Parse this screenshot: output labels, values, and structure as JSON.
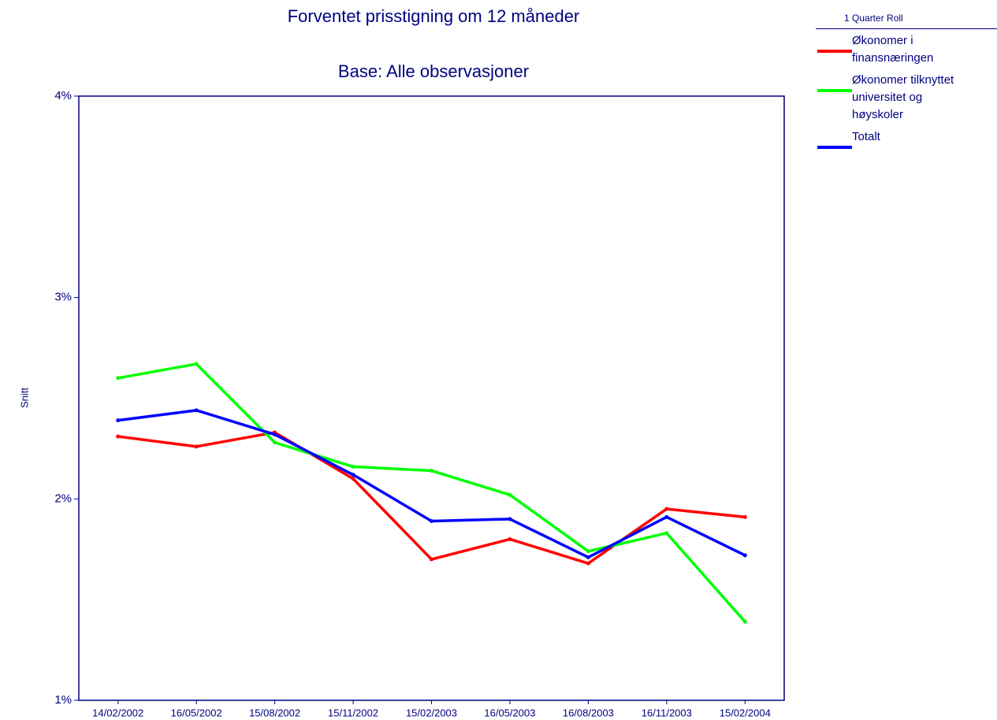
{
  "chart_data": {
    "type": "line",
    "title": "Forventet prisstigning om 12 måneder",
    "subtitle": "Base:  Alle observasjoner",
    "y_label": "Snitt",
    "legend_title": "1 Quarter Roll",
    "categories": [
      "14/02/2002",
      "16/05/2002",
      "15/08/2002",
      "15/11/2002",
      "15/02/2003",
      "16/05/2003",
      "16/08/2003",
      "16/11/2003",
      "15/02/2004"
    ],
    "series": [
      {
        "name": "Økonomer i finansnæringen",
        "color": "#ff0000",
        "values": [
          2.31,
          2.26,
          2.33,
          2.1,
          1.7,
          1.8,
          1.68,
          1.95,
          1.91
        ]
      },
      {
        "name": "Økonomer tilknyttet universitet og høyskoler",
        "color": "#00ff00",
        "values": [
          2.6,
          2.67,
          2.28,
          2.16,
          2.14,
          2.02,
          1.74,
          1.83,
          1.39
        ]
      },
      {
        "name": "Totalt",
        "color": "#0000ff",
        "values": [
          2.39,
          2.44,
          2.32,
          2.12,
          1.89,
          1.9,
          1.71,
          1.91,
          1.72
        ]
      }
    ],
    "ylim": [
      1,
      4
    ],
    "yticks": [
      {
        "value": 1,
        "label": "1%"
      },
      {
        "value": 2,
        "label": "2%"
      },
      {
        "value": 3,
        "label": "3%"
      },
      {
        "value": 4,
        "label": "4%"
      }
    ],
    "legend": "right"
  }
}
